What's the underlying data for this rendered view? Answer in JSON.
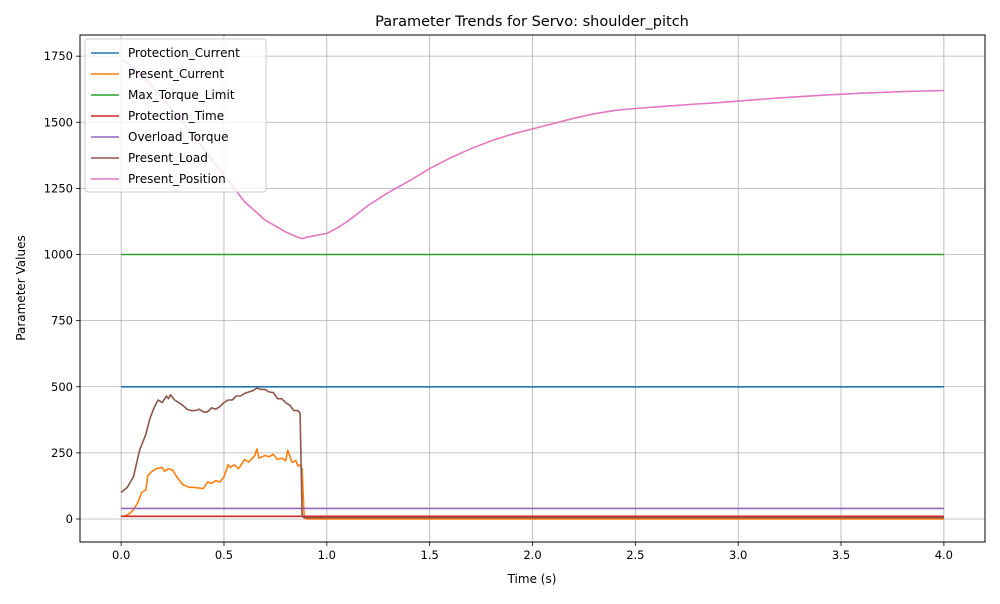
{
  "chart_data": {
    "type": "line",
    "title": "Parameter Trends for Servo: shoulder_pitch",
    "xlabel": "Time (s)",
    "ylabel": "Parameter Values",
    "xlim": [
      -0.2,
      4.2
    ],
    "ylim": [
      -87,
      1830
    ],
    "xticks": [
      0.0,
      0.5,
      1.0,
      1.5,
      2.0,
      2.5,
      3.0,
      3.5,
      4.0
    ],
    "xtick_labels": [
      "0.0",
      "0.5",
      "1.0",
      "1.5",
      "2.0",
      "2.5",
      "3.0",
      "3.5",
      "4.0"
    ],
    "yticks": [
      0,
      250,
      500,
      750,
      1000,
      1250,
      1500,
      1750
    ],
    "ytick_labels": [
      "0",
      "250",
      "500",
      "750",
      "1000",
      "1250",
      "1500",
      "1750"
    ],
    "grid": true,
    "legend_position": "top-left",
    "series": [
      {
        "name": "Protection_Current",
        "color": "#1f77b4",
        "x": [
          0.0,
          4.0
        ],
        "y": [
          500,
          500
        ]
      },
      {
        "name": "Present_Current",
        "color": "#ff7f0e",
        "x": [
          0.0,
          0.02,
          0.04,
          0.06,
          0.08,
          0.1,
          0.12,
          0.13,
          0.15,
          0.17,
          0.2,
          0.21,
          0.23,
          0.25,
          0.27,
          0.3,
          0.33,
          0.35,
          0.37,
          0.4,
          0.42,
          0.44,
          0.46,
          0.48,
          0.5,
          0.52,
          0.53,
          0.55,
          0.57,
          0.58,
          0.6,
          0.62,
          0.65,
          0.66,
          0.67,
          0.7,
          0.72,
          0.74,
          0.76,
          0.78,
          0.8,
          0.81,
          0.83,
          0.85,
          0.86,
          0.87,
          0.88,
          0.89,
          0.9,
          1.0,
          2.0,
          3.0,
          4.0
        ],
        "y": [
          10,
          12,
          20,
          35,
          60,
          100,
          110,
          165,
          180,
          190,
          195,
          180,
          190,
          185,
          160,
          130,
          120,
          120,
          118,
          115,
          140,
          135,
          145,
          140,
          160,
          205,
          195,
          205,
          190,
          200,
          225,
          215,
          240,
          265,
          230,
          240,
          235,
          245,
          225,
          230,
          220,
          260,
          215,
          220,
          200,
          205,
          190,
          5,
          0,
          0,
          0,
          0,
          0
        ]
      },
      {
        "name": "Max_Torque_Limit",
        "color": "#2ca02c",
        "x": [
          0.0,
          4.0
        ],
        "y": [
          1000,
          1000
        ]
      },
      {
        "name": "Protection_Time",
        "color": "#d62728",
        "x": [
          0.0,
          4.0
        ],
        "y": [
          10,
          10
        ]
      },
      {
        "name": "Overload_Torque",
        "color": "#9467bd",
        "x": [
          0.0,
          4.0
        ],
        "y": [
          40,
          40
        ]
      },
      {
        "name": "Present_Load",
        "color": "#8c564b",
        "x": [
          0.0,
          0.03,
          0.06,
          0.09,
          0.12,
          0.14,
          0.16,
          0.18,
          0.2,
          0.22,
          0.23,
          0.24,
          0.26,
          0.28,
          0.3,
          0.32,
          0.34,
          0.36,
          0.38,
          0.4,
          0.42,
          0.44,
          0.46,
          0.48,
          0.5,
          0.52,
          0.54,
          0.56,
          0.58,
          0.6,
          0.62,
          0.64,
          0.66,
          0.68,
          0.7,
          0.72,
          0.74,
          0.76,
          0.78,
          0.8,
          0.82,
          0.84,
          0.86,
          0.87,
          0.88,
          0.89,
          0.9,
          1.0,
          2.0,
          3.0,
          4.0
        ],
        "y": [
          100,
          120,
          160,
          260,
          320,
          380,
          420,
          450,
          440,
          465,
          455,
          470,
          450,
          440,
          430,
          415,
          410,
          410,
          415,
          405,
          405,
          420,
          415,
          425,
          440,
          450,
          450,
          465,
          465,
          475,
          480,
          485,
          495,
          490,
          490,
          480,
          478,
          455,
          455,
          440,
          430,
          410,
          410,
          400,
          10,
          5,
          5,
          5,
          5,
          5,
          5
        ]
      },
      {
        "name": "Present_Position",
        "color": "#e377c2",
        "x": [
          0.0,
          0.1,
          0.2,
          0.3,
          0.4,
          0.5,
          0.6,
          0.7,
          0.8,
          0.85,
          0.88,
          0.9,
          1.0,
          1.05,
          1.1,
          1.2,
          1.3,
          1.4,
          1.5,
          1.6,
          1.7,
          1.8,
          1.9,
          2.0,
          2.1,
          2.2,
          2.3,
          2.4,
          2.5,
          2.6,
          2.7,
          2.8,
          2.9,
          3.0,
          3.2,
          3.4,
          3.6,
          3.8,
          4.0
        ],
        "y": [
          1740,
          1680,
          1590,
          1500,
          1400,
          1300,
          1200,
          1130,
          1085,
          1068,
          1060,
          1065,
          1080,
          1100,
          1125,
          1185,
          1235,
          1278,
          1325,
          1365,
          1400,
          1430,
          1455,
          1475,
          1495,
          1515,
          1532,
          1545,
          1552,
          1558,
          1564,
          1569,
          1574,
          1580,
          1592,
          1602,
          1610,
          1616,
          1620
        ]
      }
    ]
  }
}
